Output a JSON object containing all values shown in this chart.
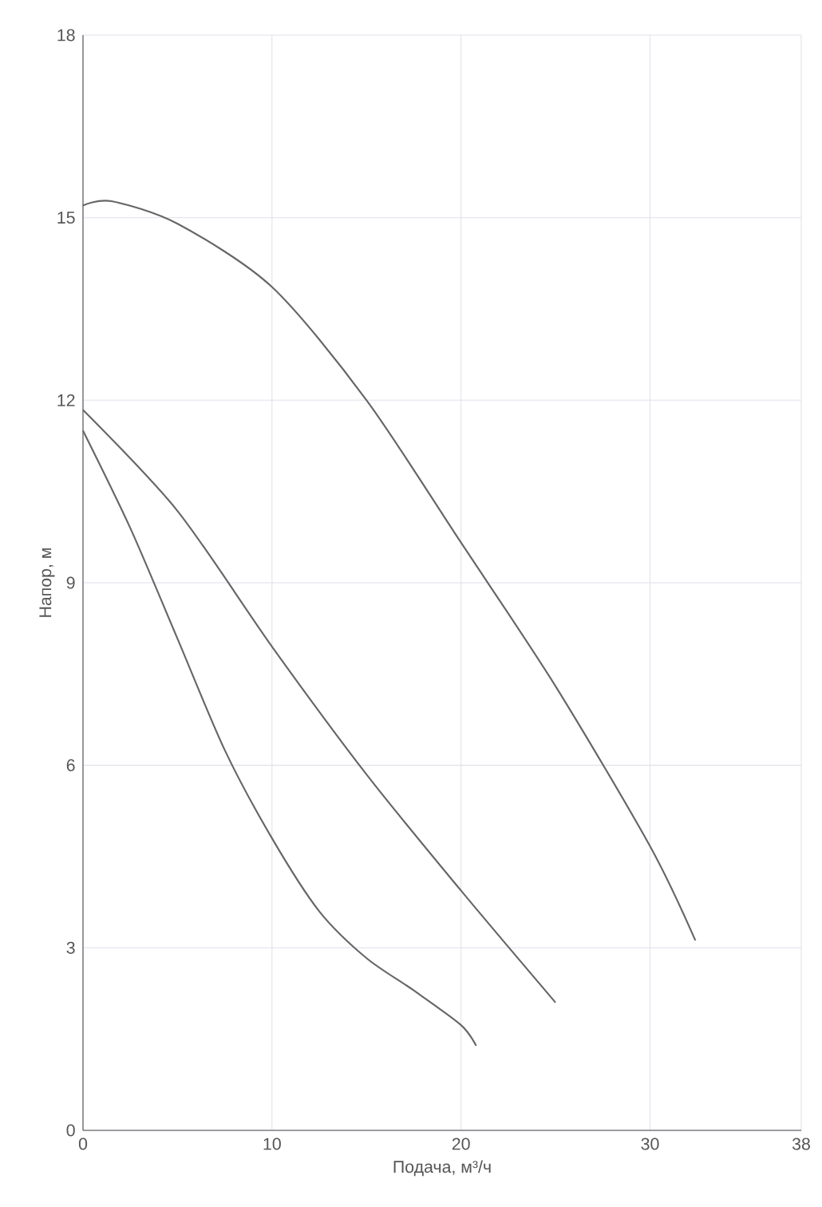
{
  "chart_data": {
    "type": "line",
    "xlabel": "Подача, м³/ч",
    "ylabel": "Напор, м",
    "xlim": [
      0,
      38
    ],
    "ylim": [
      0,
      18
    ],
    "xticks": [
      0,
      10,
      20,
      30,
      38
    ],
    "yticks": [
      0,
      3,
      6,
      9,
      12,
      15,
      18
    ],
    "grid": true,
    "marker": "none",
    "series": [
      {
        "color": "#666666",
        "x": [
          0,
          1.5,
          5,
          10,
          15,
          20,
          25,
          30,
          32.4
        ],
        "values": [
          15.2,
          15.27,
          14.9,
          13.86,
          12.0,
          9.66,
          7.3,
          4.67,
          3.12
        ]
      },
      {
        "color": "#666666",
        "x": [
          0,
          5,
          10,
          15,
          20,
          25
        ],
        "values": [
          11.84,
          10.18,
          7.95,
          5.85,
          3.94,
          2.1
        ]
      },
      {
        "color": "#666666",
        "x": [
          0,
          2.5,
          5,
          7.5,
          10,
          12.5,
          15,
          17.5,
          20,
          20.8
        ],
        "values": [
          11.5,
          9.9,
          8.08,
          6.25,
          4.8,
          3.6,
          2.83,
          2.3,
          1.73,
          1.39
        ]
      }
    ]
  }
}
